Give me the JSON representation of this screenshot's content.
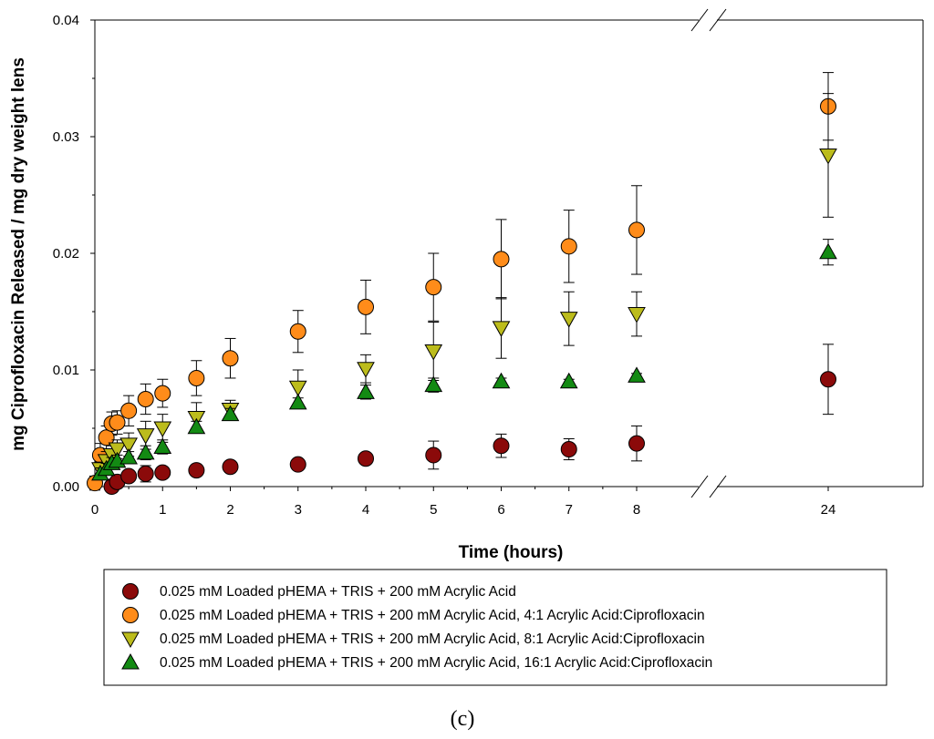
{
  "chart_data": {
    "type": "scatter",
    "xlabel": "Time (hours)",
    "ylabel": "mg Ciprofloxacin Released / mg dry weight lens",
    "caption": "(c)",
    "xlim": [
      0,
      8
    ],
    "ylim": [
      0,
      0.04
    ],
    "x_break": {
      "after": 8,
      "resume_at": 24
    },
    "x_ticks": [
      0,
      1,
      2,
      3,
      4,
      5,
      6,
      7,
      8,
      24
    ],
    "x_tick_labels": [
      "0",
      "1",
      "2",
      "3",
      "4",
      "5",
      "6",
      "7",
      "8",
      "24"
    ],
    "y_ticks": [
      0,
      0.01,
      0.02,
      0.03,
      0.04
    ],
    "y_tick_labels": [
      "0.00",
      "0.01",
      "0.02",
      "0.03",
      "0.04"
    ],
    "grid": false,
    "legend_position": "bottom",
    "series": [
      {
        "name": "0.025 mM Loaded pHEMA + TRIS + 200 mM Acrylic Acid",
        "marker": "circle",
        "color": "#8b0a0a",
        "points": [
          {
            "x": 0.25,
            "y": 0.0,
            "err": 0.0003
          },
          {
            "x": 0.33,
            "y": 0.0004,
            "err": 0.0003
          },
          {
            "x": 0.5,
            "y": 0.0009,
            "err": 0.0004
          },
          {
            "x": 0.75,
            "y": 0.0011,
            "err": 0.0007
          },
          {
            "x": 1,
            "y": 0.0012,
            "err": 0.0003
          },
          {
            "x": 1.5,
            "y": 0.0014,
            "err": 0.0003
          },
          {
            "x": 2,
            "y": 0.0017,
            "err": 0.0003
          },
          {
            "x": 3,
            "y": 0.0019,
            "err": 0.0003
          },
          {
            "x": 4,
            "y": 0.0024,
            "err": 0.0004
          },
          {
            "x": 5,
            "y": 0.0027,
            "err": 0.0012
          },
          {
            "x": 6,
            "y": 0.0035,
            "err": 0.001
          },
          {
            "x": 7,
            "y": 0.0032,
            "err": 0.0009
          },
          {
            "x": 8,
            "y": 0.0037,
            "err": 0.0015
          },
          {
            "x": 24,
            "y": 0.0092,
            "err": 0.003
          }
        ]
      },
      {
        "name": "0.025 mM Loaded pHEMA + TRIS + 200 mM Acrylic Acid, 4:1 Acrylic Acid:Ciprofloxacin",
        "marker": "circle",
        "color": "#ff8c1a",
        "points": [
          {
            "x": 0,
            "y": 0.0003,
            "err": 0.0006
          },
          {
            "x": 0.08,
            "y": 0.0027,
            "err": 0.001
          },
          {
            "x": 0.17,
            "y": 0.0042,
            "err": 0.001
          },
          {
            "x": 0.25,
            "y": 0.0054,
            "err": 0.001
          },
          {
            "x": 0.33,
            "y": 0.0055,
            "err": 0.001
          },
          {
            "x": 0.5,
            "y": 0.0065,
            "err": 0.0013
          },
          {
            "x": 0.75,
            "y": 0.0075,
            "err": 0.0013
          },
          {
            "x": 1,
            "y": 0.008,
            "err": 0.0012
          },
          {
            "x": 1.5,
            "y": 0.0093,
            "err": 0.0015
          },
          {
            "x": 2,
            "y": 0.011,
            "err": 0.0017
          },
          {
            "x": 3,
            "y": 0.0133,
            "err": 0.0018
          },
          {
            "x": 4,
            "y": 0.0154,
            "err": 0.0023
          },
          {
            "x": 5,
            "y": 0.0171,
            "err": 0.0029
          },
          {
            "x": 6,
            "y": 0.0195,
            "err": 0.0034
          },
          {
            "x": 7,
            "y": 0.0206,
            "err": 0.0031
          },
          {
            "x": 8,
            "y": 0.022,
            "err": 0.0038
          },
          {
            "x": 24,
            "y": 0.0326,
            "err": 0.0029
          }
        ]
      },
      {
        "name": "0.025 mM Loaded pHEMA + TRIS + 200 mM Acrylic Acid, 8:1 Acrylic Acid:Ciprofloxacin",
        "marker": "triangle-down",
        "color": "#bcbc1c",
        "points": [
          {
            "x": 0.08,
            "y": 0.0015,
            "err": 0.0006
          },
          {
            "x": 0.17,
            "y": 0.0022,
            "err": 0.0008
          },
          {
            "x": 0.25,
            "y": 0.0027,
            "err": 0.0008
          },
          {
            "x": 0.33,
            "y": 0.0032,
            "err": 0.0008
          },
          {
            "x": 0.5,
            "y": 0.0036,
            "err": 0.001
          },
          {
            "x": 0.75,
            "y": 0.0044,
            "err": 0.0012
          },
          {
            "x": 1,
            "y": 0.005,
            "err": 0.0012
          },
          {
            "x": 1.5,
            "y": 0.0059,
            "err": 0.0013
          },
          {
            "x": 2,
            "y": 0.0066,
            "err": 0.0008
          },
          {
            "x": 3,
            "y": 0.0085,
            "err": 0.0015
          },
          {
            "x": 4,
            "y": 0.0101,
            "err": 0.0012
          },
          {
            "x": 5,
            "y": 0.0116,
            "err": 0.0025
          },
          {
            "x": 6,
            "y": 0.0136,
            "err": 0.0026
          },
          {
            "x": 7,
            "y": 0.0144,
            "err": 0.0023
          },
          {
            "x": 8,
            "y": 0.0148,
            "err": 0.0019
          },
          {
            "x": 24,
            "y": 0.0284,
            "err": 0.0053
          }
        ]
      },
      {
        "name": "0.025 mM Loaded pHEMA + TRIS + 200 mM Acrylic Acid, 16:1 Acrylic Acid:Ciprofloxacin",
        "marker": "triangle-up",
        "color": "#138a13",
        "points": [
          {
            "x": 0.08,
            "y": 0.0011,
            "err": 0.0005
          },
          {
            "x": 0.17,
            "y": 0.0015,
            "err": 0.0005
          },
          {
            "x": 0.25,
            "y": 0.002,
            "err": 0.0005
          },
          {
            "x": 0.33,
            "y": 0.0022,
            "err": 0.0005
          },
          {
            "x": 0.5,
            "y": 0.0025,
            "err": 0.0005
          },
          {
            "x": 0.75,
            "y": 0.0029,
            "err": 0.0006
          },
          {
            "x": 1,
            "y": 0.0034,
            "err": 0.0006
          },
          {
            "x": 1.5,
            "y": 0.0051,
            "err": 0.0005
          },
          {
            "x": 2,
            "y": 0.0062,
            "err": 0.0005
          },
          {
            "x": 3,
            "y": 0.0072,
            "err": 0.0004
          },
          {
            "x": 4,
            "y": 0.0081,
            "err": 0.0006
          },
          {
            "x": 5,
            "y": 0.0087,
            "err": 0.0006
          },
          {
            "x": 6,
            "y": 0.009,
            "err": 0.0003
          },
          {
            "x": 7,
            "y": 0.009,
            "err": 0.0002
          },
          {
            "x": 8,
            "y": 0.0095,
            "err": 0.0002
          },
          {
            "x": 24,
            "y": 0.0201,
            "err": 0.0011
          }
        ]
      }
    ]
  }
}
